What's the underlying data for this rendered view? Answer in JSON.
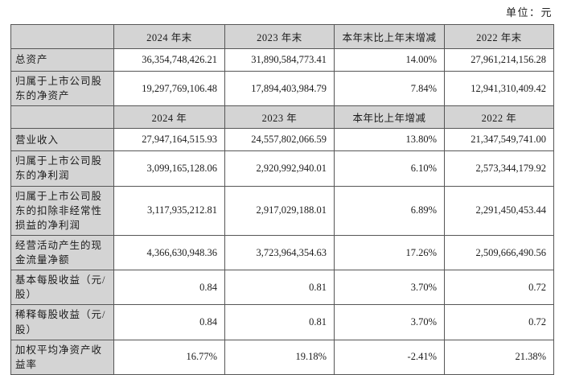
{
  "page": {
    "unit_label": "单位：元"
  },
  "table": {
    "colors": {
      "header_bg": "#d4d4d4",
      "border": "#565656",
      "text": "#1c1c1c"
    },
    "sections": [
      {
        "header": {
          "label": "",
          "cols": [
            "2024 年末",
            "2023 年末",
            "本年末比上年末增减",
            "2022 年末"
          ]
        },
        "rows": [
          {
            "label": "总资产",
            "values": [
              "36,354,748,426.21",
              "31,890,584,773.41",
              "14.00%",
              "27,961,214,156.28"
            ]
          },
          {
            "label": "归属于上市公司股东的净资产",
            "values": [
              "19,297,769,106.48",
              "17,894,403,984.79",
              "7.84%",
              "12,941,310,409.42"
            ]
          }
        ]
      },
      {
        "header": {
          "label": "",
          "cols": [
            "2024 年",
            "2023 年",
            "本年比上年增减",
            "2022 年"
          ]
        },
        "rows": [
          {
            "label": "营业收入",
            "values": [
              "27,947,164,515.93",
              "24,557,802,066.59",
              "13.80%",
              "21,347,549,741.00"
            ]
          },
          {
            "label": "归属于上市公司股东的净利润",
            "values": [
              "3,099,165,128.06",
              "2,920,992,940.01",
              "6.10%",
              "2,573,344,179.92"
            ]
          },
          {
            "label": "归属于上市公司股东的扣除非经常性损益的净利润",
            "values": [
              "3,117,935,212.81",
              "2,917,029,188.01",
              "6.89%",
              "2,291,450,453.44"
            ]
          },
          {
            "label": "经营活动产生的现金流量净额",
            "values": [
              "4,366,630,948.36",
              "3,723,964,354.63",
              "17.26%",
              "2,509,666,490.56"
            ]
          },
          {
            "label": "基本每股收益（元/股）",
            "values": [
              "0.84",
              "0.81",
              "3.70%",
              "0.72"
            ]
          },
          {
            "label": "稀释每股收益（元/股）",
            "values": [
              "0.84",
              "0.81",
              "3.70%",
              "0.72"
            ]
          },
          {
            "label": "加权平均净资产收益率",
            "values": [
              "16.77%",
              "19.18%",
              "-2.41%",
              "21.38%"
            ]
          }
        ]
      }
    ]
  }
}
